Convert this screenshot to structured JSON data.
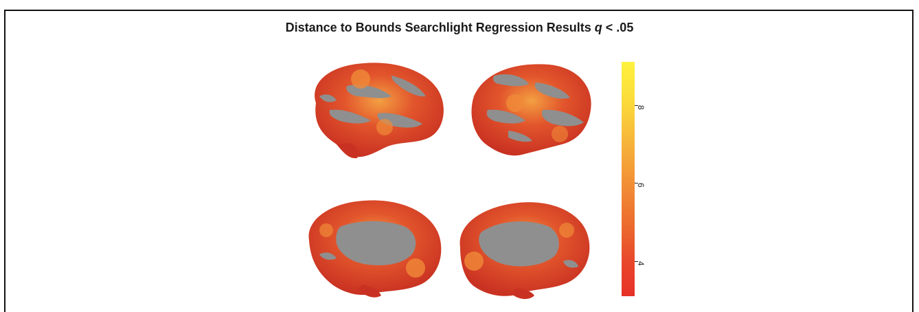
{
  "title": {
    "main": "Distance to Bounds Searchlight Regression Results",
    "stat_symbol": "q",
    "threshold": "< .05"
  },
  "views": [
    {
      "name": "lateral-left"
    },
    {
      "name": "lateral-right"
    },
    {
      "name": "medial-left"
    },
    {
      "name": "medial-right"
    }
  ],
  "colorbar": {
    "colormap": "red-to-yellow",
    "ticks": [
      "4",
      "6",
      "8"
    ],
    "low_color": "#e63128",
    "high_color": "#fff23e",
    "tick_values": [
      4,
      6,
      8
    ],
    "range": [
      3.1,
      9.1
    ]
  },
  "colors": {
    "cortex_gray": "#8f8f8f",
    "activation_red": "#d93a26",
    "activation_orange": "#f08a38"
  }
}
